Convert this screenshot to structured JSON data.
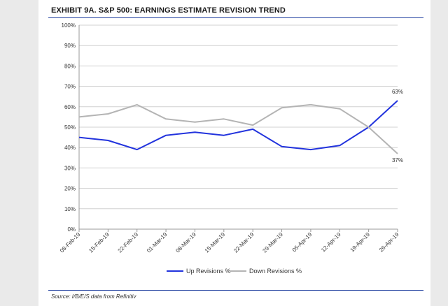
{
  "title": "EXHIBIT 9A.  S&P 500: EARNINGS ESTIMATE REVISION TREND",
  "source": "Source: I/B/E/S data from Refinitiv",
  "chart_data": {
    "type": "line",
    "title": "EXHIBIT 9A.  S&P 500: EARNINGS ESTIMATE REVISION TREND",
    "xlabel": "",
    "ylabel": "",
    "ylim": [
      0,
      100
    ],
    "yticks": [
      "0%",
      "10%",
      "20%",
      "30%",
      "40%",
      "50%",
      "60%",
      "70%",
      "80%",
      "90%",
      "100%"
    ],
    "categories": [
      "08-Feb-19",
      "15-Feb-19",
      "22-Feb-19",
      "01-Mar-19",
      "08-Mar-19",
      "15-Mar-19",
      "22-Mar-19",
      "29-Mar-19",
      "05-Apr-19",
      "12-Apr-19",
      "19-Apr-19",
      "26-Apr-19"
    ],
    "grid": true,
    "legend": "bottom",
    "series": [
      {
        "name": "Up Revisions %",
        "color": "#2233dd",
        "values": [
          45,
          43.5,
          39,
          46,
          47.5,
          46,
          49,
          40.5,
          39,
          41,
          50,
          63
        ]
      },
      {
        "name": "Down Revisions %",
        "color": "#b4b4b4",
        "values": [
          55,
          56.5,
          61,
          54,
          52.5,
          54,
          51,
          59.5,
          61,
          59,
          50,
          37
        ]
      }
    ],
    "annotations": [
      {
        "series": 0,
        "index": 11,
        "text": "63%"
      },
      {
        "series": 1,
        "index": 11,
        "text": "37%"
      }
    ]
  }
}
